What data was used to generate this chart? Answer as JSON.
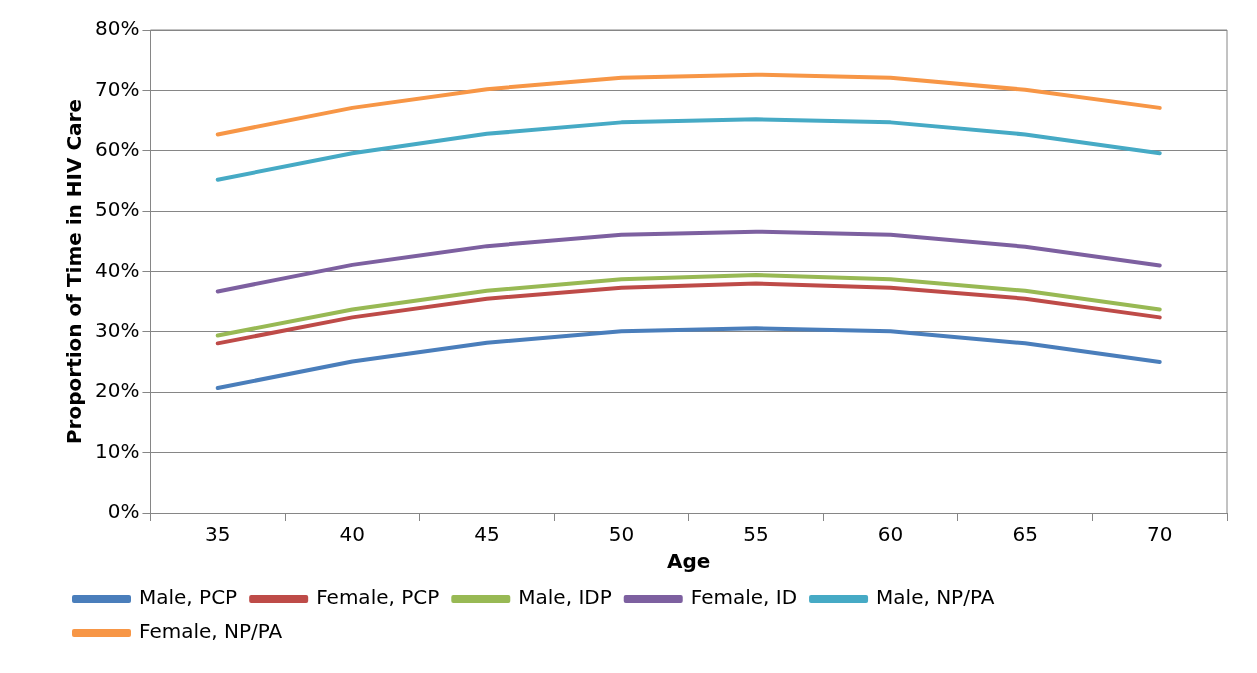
{
  "chart_data": {
    "type": "line",
    "xlabel": "Age",
    "ylabel": "Proportion of Time in HIV Care",
    "categories": [
      "35",
      "40",
      "45",
      "50",
      "55",
      "60",
      "65",
      "70"
    ],
    "series": [
      {
        "name": "Male, PCP",
        "color": "#4a7ebb",
        "values": [
          20.7,
          25.1,
          28.2,
          30.1,
          30.6,
          30.1,
          28.1,
          25.0
        ]
      },
      {
        "name": "Female, PCP",
        "color": "#be4b48",
        "values": [
          28.1,
          32.4,
          35.5,
          37.3,
          38.0,
          37.3,
          35.5,
          32.4
        ]
      },
      {
        "name": "Male, IDP",
        "color": "#98b954",
        "values": [
          29.4,
          33.7,
          36.8,
          38.7,
          39.4,
          38.7,
          36.8,
          33.7
        ]
      },
      {
        "name": "Female, ID",
        "color": "#7d60a0",
        "values": [
          36.7,
          41.1,
          44.2,
          46.1,
          46.6,
          46.1,
          44.1,
          41.0
        ]
      },
      {
        "name": "Male, NP/PA",
        "color": "#46aac5",
        "values": [
          55.2,
          59.6,
          62.8,
          64.7,
          65.2,
          64.7,
          62.7,
          59.6
        ]
      },
      {
        "name": "Female, NP/PA",
        "color": "#f79646",
        "values": [
          62.7,
          67.1,
          70.2,
          72.1,
          72.6,
          72.1,
          70.1,
          67.1
        ]
      }
    ],
    "ylim": [
      0,
      80
    ],
    "yticks": [
      {
        "value": 0,
        "label": "0%"
      },
      {
        "value": 10,
        "label": "10%"
      },
      {
        "value": 20,
        "label": "20%"
      },
      {
        "value": 30,
        "label": "30%"
      },
      {
        "value": 40,
        "label": "40%"
      },
      {
        "value": 50,
        "label": "50%"
      },
      {
        "value": 60,
        "label": "60%"
      },
      {
        "value": 70,
        "label": "70%"
      },
      {
        "value": 80,
        "label": "80%"
      }
    ],
    "grid": "y",
    "legend": "bottom",
    "marker": "none",
    "line_style": "solid"
  }
}
